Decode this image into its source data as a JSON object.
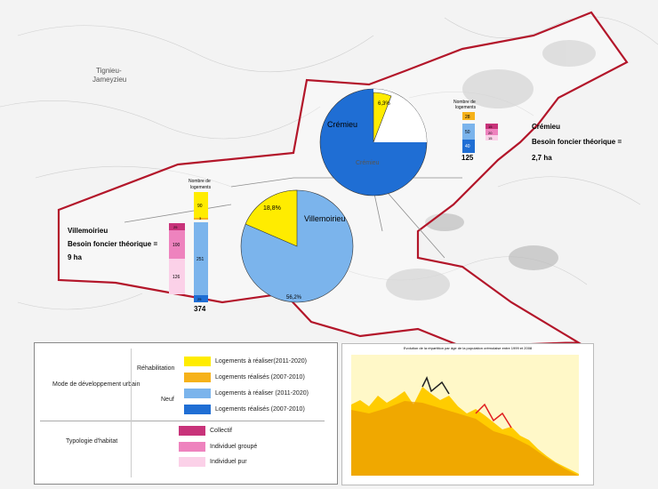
{
  "colors": {
    "boundary": "#b3162a",
    "rehab_todo": "#ffec00",
    "rehab_done": "#f6b21a",
    "new_todo": "#7bb4ec",
    "new_done": "#1f6ed4",
    "collectif": "#c8337a",
    "individuel_groupe": "#ee83be",
    "individuel_pur": "#fbd1e8"
  },
  "places": {
    "cremieu_label": "Crémieu",
    "cremieu_town": "Crémieu",
    "villemoirieu_label": "Villemoirieu",
    "tignieu_label": "Tignieu-\nJameyzieu"
  },
  "cremieu": {
    "pie_rehab_pct": "6,3%",
    "pie_new_pct": "18,6%",
    "bar_title": "Nombre de\nlogements",
    "bar_values": {
      "rehab_todo": "28",
      "new_todo": "50",
      "new_done": "40",
      "collectif": "15",
      "groupe": "20",
      "pur": "15"
    },
    "total": "125",
    "besoin_title": "Crémieu",
    "besoin_line1": "Besoin foncier théorique =",
    "besoin_line2": "2,7 ha"
  },
  "villemoirieu": {
    "pie_rehab_pct": "18,8%",
    "pie_new_pct": "56,2%",
    "bar_title": "Nombre de\nlogements",
    "bar_values": {
      "rehab_todo": "90",
      "rehab_done": "3",
      "new_todo": "251",
      "new_done": "25",
      "collectif": "25",
      "groupe": "100",
      "pur": "126"
    },
    "total": "374",
    "besoin_title": "Villemoirieu",
    "besoin_line1": "Besoin foncier théorique =",
    "besoin_line2": "9 ha"
  },
  "legend": {
    "mode_title": "Mode de développement urbain",
    "rehab_label": "Réhabilitation",
    "neuf_label": "Neuf",
    "typo_title": "Typologie d'habitat",
    "items": [
      {
        "label": "Logements à réaliser(2011-2020)",
        "color": "#ffec00"
      },
      {
        "label": "Logements réalisés (2007-2010)",
        "color": "#f6b21a"
      },
      {
        "label": "Logements à réaliser (2011-2020)",
        "color": "#7bb4ec"
      },
      {
        "label": "Logements réalisés (2007-2010)",
        "color": "#1f6ed4"
      },
      {
        "label": "Collectif",
        "color": "#c8337a"
      },
      {
        "label": "Individuel groupé",
        "color": "#ee83be"
      },
      {
        "label": "Individuel pur",
        "color": "#fbd1e8"
      }
    ]
  },
  "inset": {
    "title": "Evolution de la répartition par âge de la population crémolaise entre 1999 et 2008"
  }
}
